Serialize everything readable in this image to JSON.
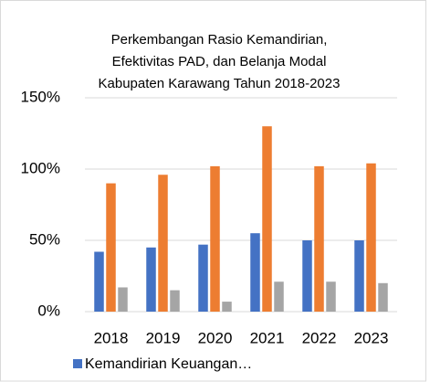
{
  "chart_data": {
    "type": "bar",
    "title": [
      "Perkembangan Rasio Kemandirian,",
      "Efektivitas PAD, dan Belanja Modal",
      "Kabupaten Karawang Tahun 2018-2023"
    ],
    "categories": [
      "2018",
      "2019",
      "2020",
      "2021",
      "2022",
      "2023"
    ],
    "series": [
      {
        "name": "Kemandirian Keuangan…",
        "color": "#4472c4",
        "values": [
          42,
          45,
          47,
          55,
          50,
          50
        ]
      },
      {
        "color": "#ed7d31",
        "values": [
          90,
          96,
          102,
          130,
          102,
          104
        ]
      },
      {
        "color": "#a5a5a5",
        "values": [
          17,
          15,
          7,
          21,
          21,
          20
        ]
      }
    ],
    "ylim": [
      0,
      150
    ],
    "yticks": [
      {
        "value": 0,
        "label": "0%"
      },
      {
        "value": 50,
        "label": "50%"
      },
      {
        "value": 100,
        "label": "100%"
      },
      {
        "value": 150,
        "label": "150%"
      }
    ],
    "grid": true,
    "legend": "bottom"
  }
}
